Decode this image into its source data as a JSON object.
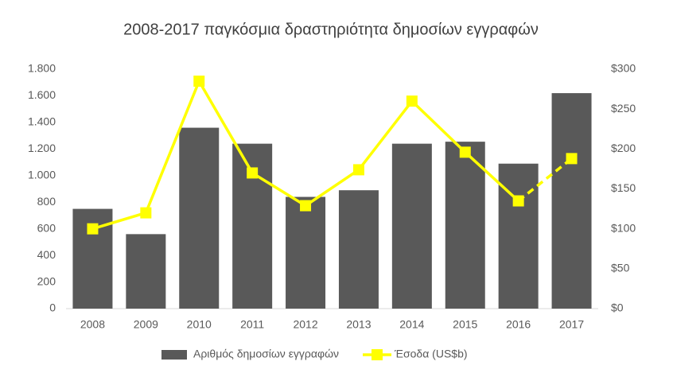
{
  "chart_data": {
    "type": "bar-line",
    "title": "2008-2017 παγκόσμια δραστηριότητα δημοσίων εγγραφών",
    "categories": [
      "2008",
      "2009",
      "2010",
      "2011",
      "2012",
      "2013",
      "2014",
      "2015",
      "2016",
      "2017"
    ],
    "series": [
      {
        "name": "Αριθμός δημοσίων εγγραφών",
        "type": "bar",
        "color": "#595959",
        "axis": "y",
        "values": [
          750,
          560,
          1360,
          1240,
          840,
          890,
          1240,
          1255,
          1090,
          1620
        ]
      },
      {
        "name": "Έσοδα (US$b)",
        "type": "line",
        "color": "#ffff00",
        "axis": "y2",
        "last_segment_style": "dashed",
        "values": [
          100,
          120,
          285,
          170,
          129,
          174,
          260,
          196,
          135,
          188
        ]
      }
    ],
    "ylim": [
      0,
      1800
    ],
    "yticks": [
      0,
      200,
      400,
      600,
      800,
      {
        "value": 1000,
        "label": "1.000"
      },
      {
        "value": 1200,
        "label": "1.200"
      },
      {
        "value": 1400,
        "label": "1.400"
      },
      {
        "value": 1600,
        "label": "1.600"
      },
      {
        "value": 1800,
        "label": "1.800"
      }
    ],
    "y2lim": [
      0,
      300
    ],
    "y2ticks": [
      {
        "value": 0,
        "label": "$0"
      },
      {
        "value": 50,
        "label": "$50"
      },
      {
        "value": 100,
        "label": "$100"
      },
      {
        "value": 150,
        "label": "$150"
      },
      {
        "value": 200,
        "label": "$200"
      },
      {
        "value": 250,
        "label": "$250"
      },
      {
        "value": 300,
        "label": "$300"
      }
    ],
    "grid": false,
    "legend": "bottom"
  }
}
